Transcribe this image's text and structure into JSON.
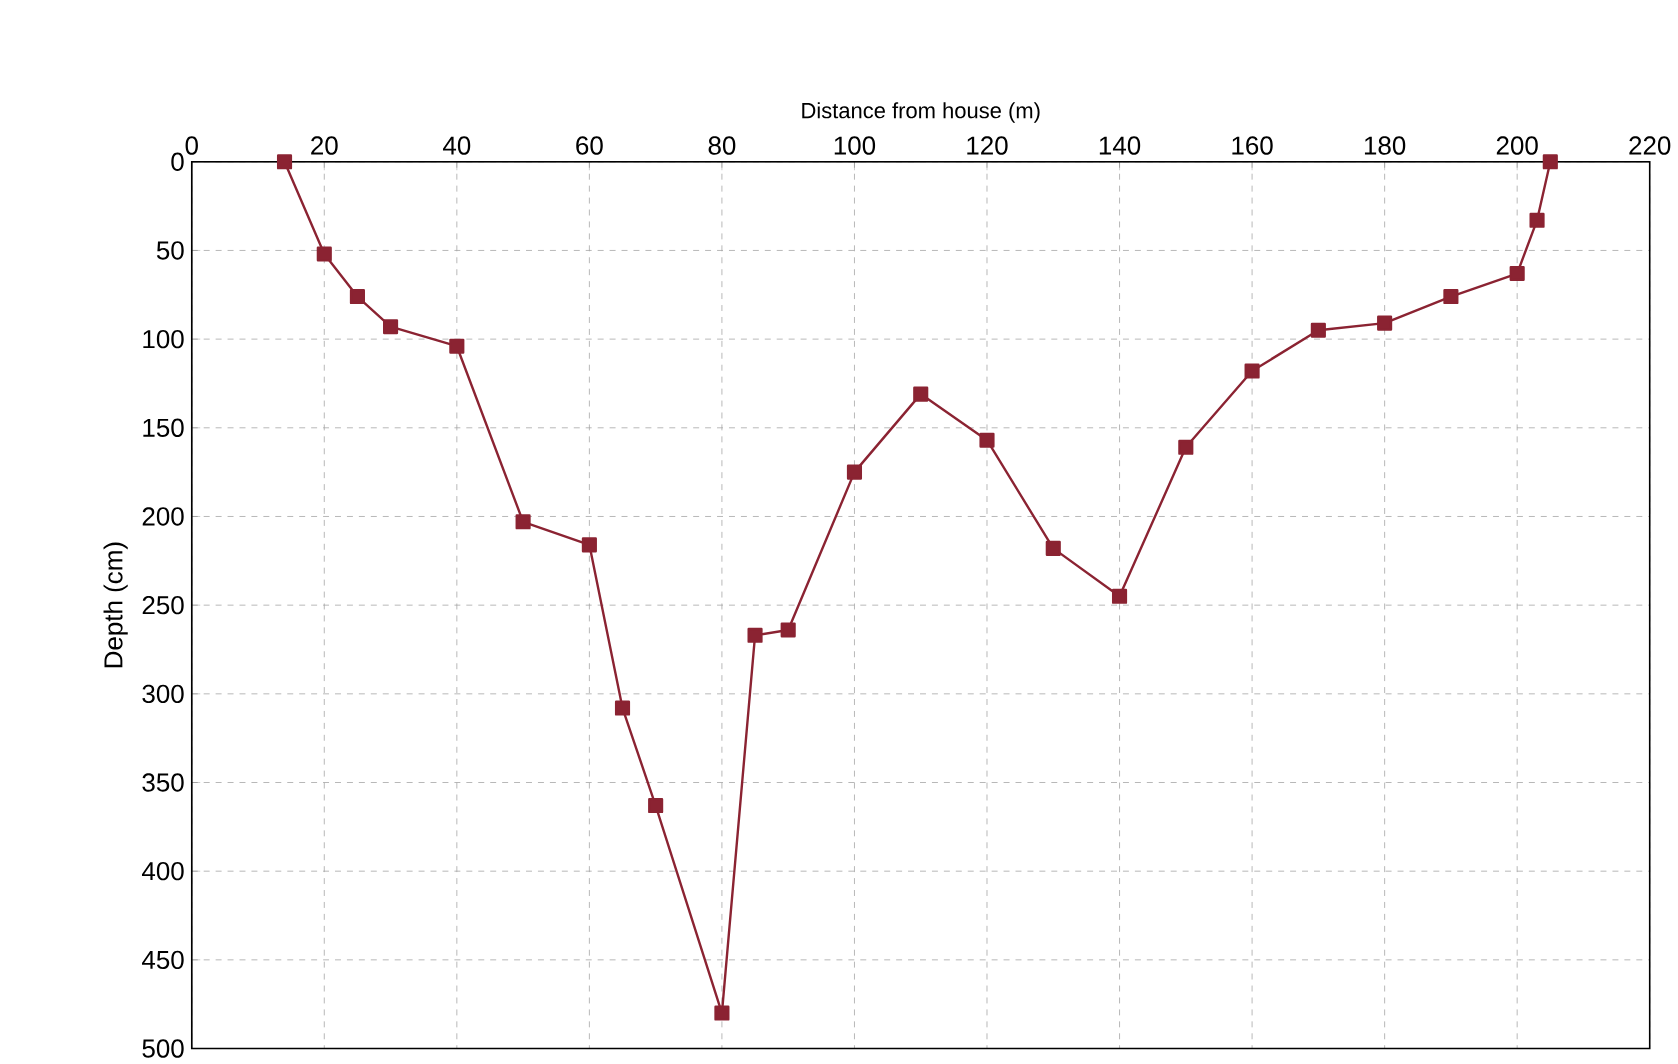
{
  "chart_data": {
    "type": "line",
    "xlabel": "Distance from house (m)",
    "ylabel": "Depth (cm)",
    "xlim": [
      0,
      220
    ],
    "xticks": [
      0,
      20,
      40,
      60,
      80,
      100,
      120,
      140,
      160,
      180,
      200,
      220
    ],
    "ylim": [
      500,
      0
    ],
    "yticks": [
      0,
      50,
      100,
      150,
      200,
      250,
      300,
      350,
      400,
      450,
      500
    ],
    "grid": true,
    "marker": "square",
    "line_style": "solid",
    "series": [
      {
        "color": "#8b2332",
        "x": [
          14,
          20,
          25,
          30,
          40,
          50,
          60,
          65,
          70,
          80,
          85,
          90,
          100,
          110,
          120,
          130,
          140,
          150,
          160,
          170,
          180,
          190,
          200,
          203,
          205
        ],
        "values": [
          0,
          52,
          76,
          93,
          104,
          203,
          216,
          308,
          363,
          480,
          267,
          264,
          175,
          131,
          157,
          218,
          245,
          161,
          118,
          95,
          91,
          76,
          63,
          33,
          0
        ]
      }
    ]
  }
}
